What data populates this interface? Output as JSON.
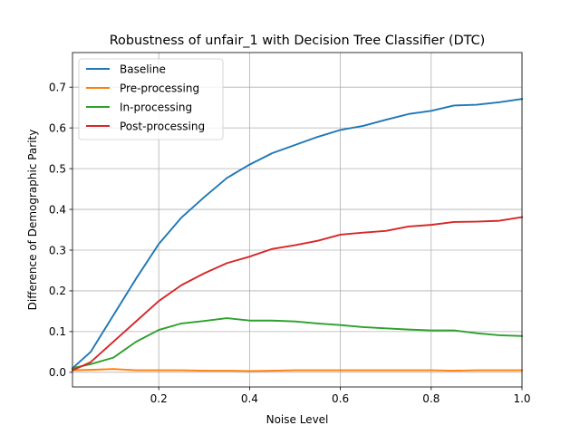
{
  "chart_data": {
    "type": "line",
    "title": "Robustness of unfair_1 with Decision Tree Classifier (DTC)",
    "xlabel": "Noise Level",
    "ylabel": "Difference of Demographic Parity",
    "xlim": [
      0.01,
      1.0
    ],
    "ylim": [
      -0.036,
      0.785
    ],
    "xticks": [
      0.2,
      0.4,
      0.6,
      0.8,
      1.0
    ],
    "xtick_labels": [
      "0.2",
      "0.4",
      "0.6",
      "0.8",
      "1.0"
    ],
    "yticks": [
      0.0,
      0.1,
      0.2,
      0.3,
      0.4,
      0.5,
      0.6,
      0.7
    ],
    "ytick_labels": [
      "0.0",
      "0.1",
      "0.2",
      "0.3",
      "0.4",
      "0.5",
      "0.6",
      "0.7"
    ],
    "grid": true,
    "legend_position": "upper left",
    "x": [
      0.01,
      0.05,
      0.1,
      0.15,
      0.2,
      0.25,
      0.3,
      0.35,
      0.4,
      0.45,
      0.5,
      0.55,
      0.6,
      0.65,
      0.7,
      0.75,
      0.8,
      0.85,
      0.9,
      0.95,
      1.0
    ],
    "series": [
      {
        "name": "Baseline",
        "color": "#1f77b4",
        "values": [
          0.01,
          0.05,
          0.14,
          0.23,
          0.315,
          0.38,
          0.43,
          0.477,
          0.51,
          0.538,
          0.558,
          0.578,
          0.595,
          0.605,
          0.62,
          0.634,
          0.642,
          0.655,
          0.657,
          0.663,
          0.671
        ]
      },
      {
        "name": "Pre-processing",
        "color": "#ff7f0e",
        "values": [
          0.005,
          0.006,
          0.008,
          0.005,
          0.005,
          0.005,
          0.004,
          0.004,
          0.003,
          0.004,
          0.005,
          0.005,
          0.005,
          0.005,
          0.005,
          0.005,
          0.005,
          0.004,
          0.005,
          0.005,
          0.005
        ]
      },
      {
        "name": "In-processing",
        "color": "#2ca02c",
        "values": [
          0.01,
          0.02,
          0.036,
          0.075,
          0.104,
          0.12,
          0.126,
          0.133,
          0.127,
          0.127,
          0.125,
          0.12,
          0.116,
          0.111,
          0.108,
          0.105,
          0.103,
          0.103,
          0.096,
          0.091,
          0.089
        ]
      },
      {
        "name": "Post-processing",
        "color": "#d62728",
        "values": [
          0.005,
          0.025,
          0.075,
          0.125,
          0.175,
          0.214,
          0.243,
          0.268,
          0.284,
          0.303,
          0.312,
          0.323,
          0.338,
          0.343,
          0.347,
          0.358,
          0.362,
          0.369,
          0.37,
          0.372,
          0.381
        ]
      }
    ]
  }
}
